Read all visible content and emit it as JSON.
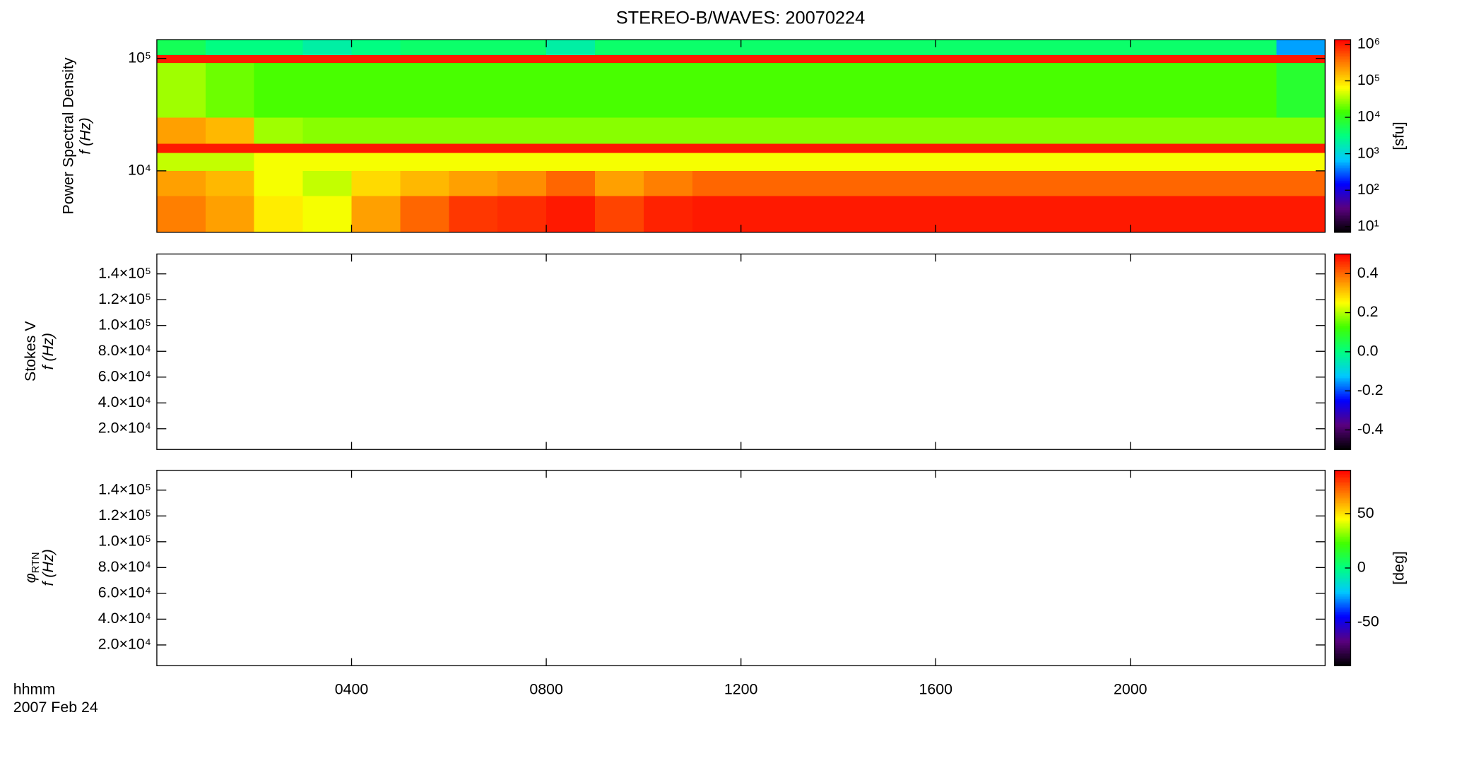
{
  "chart_data": [
    {
      "type": "heatmap",
      "title": "STEREO-B/WAVES: 20070224",
      "ylabel": [
        "Power Spectral Density",
        "f (Hz)"
      ],
      "xlim": [
        0,
        24
      ],
      "ylim": [
        2840,
        147000
      ],
      "log_y": true,
      "yticks": [
        {
          "value": 10000,
          "label": "10⁴"
        },
        {
          "value": 100000,
          "label": "10⁵"
        }
      ],
      "x_bins": [
        0,
        1,
        2,
        3,
        4,
        5,
        6,
        7,
        8,
        9,
        10,
        11,
        12,
        13,
        14,
        15,
        16,
        17,
        18,
        19,
        20,
        21,
        22,
        23,
        24
      ],
      "y_bins": [
        2840,
        6000,
        10000,
        14500,
        17500,
        30000,
        92000,
        108000,
        147000
      ],
      "z": [
        [
          300000,
          200000,
          80000,
          60000,
          200000,
          400000,
          700000,
          800000,
          1000000,
          600000,
          900000,
          1000000,
          1000000,
          1000000,
          1000000,
          1000000,
          1000000,
          1000000,
          1000000,
          1000000,
          1000000,
          1000000,
          1000000,
          1000000
        ],
        [
          200000,
          150000,
          60000,
          40000,
          100000,
          150000,
          200000,
          250000,
          400000,
          200000,
          300000,
          400000,
          400000,
          400000,
          400000,
          400000,
          400000,
          400000,
          400000,
          400000,
          400000,
          400000,
          400000,
          400000
        ],
        [
          40000,
          40000,
          60000,
          60000,
          60000,
          60000,
          60000,
          60000,
          60000,
          60000,
          60000,
          60000,
          60000,
          60000,
          60000,
          60000,
          60000,
          60000,
          60000,
          60000,
          60000,
          60000,
          60000,
          60000
        ],
        [
          1000000,
          1000000,
          1000000,
          1000000,
          1000000,
          1000000,
          1000000,
          1000000,
          1000000,
          1000000,
          1000000,
          1000000,
          1000000,
          1000000,
          1000000,
          1000000,
          1000000,
          1000000,
          1000000,
          1000000,
          1000000,
          1000000,
          1000000,
          1000000
        ],
        [
          200000,
          150000,
          30000,
          25000,
          25000,
          25000,
          25000,
          25000,
          25000,
          25000,
          25000,
          25000,
          25000,
          25000,
          25000,
          25000,
          25000,
          25000,
          25000,
          25000,
          25000,
          25000,
          25000,
          25000
        ],
        [
          30000,
          20000,
          15000,
          15000,
          15000,
          15000,
          15000,
          15000,
          15000,
          15000,
          15000,
          15000,
          15000,
          15000,
          15000,
          15000,
          15000,
          15000,
          15000,
          15000,
          15000,
          15000,
          15000,
          8000
        ],
        [
          1000000,
          1000000,
          1000000,
          1000000,
          1000000,
          1000000,
          1000000,
          1000000,
          1000000,
          1000000,
          1000000,
          1000000,
          1000000,
          1000000,
          1000000,
          1000000,
          1000000,
          1000000,
          1000000,
          1000000,
          1000000,
          1000000,
          1000000,
          1000000
        ],
        [
          5000,
          3000,
          3000,
          2000,
          3000,
          4000,
          4000,
          4000,
          2000,
          4000,
          4000,
          4000,
          4000,
          4000,
          4000,
          4000,
          4000,
          4000,
          4000,
          4000,
          4000,
          4000,
          4000,
          500
        ]
      ],
      "clim": [
        7,
        1350000
      ],
      "log_c": true,
      "cticks": [
        {
          "value": 10,
          "label": "10¹"
        },
        {
          "value": 100,
          "label": "10²"
        },
        {
          "value": 1000,
          "label": "10³"
        },
        {
          "value": 10000,
          "label": "10⁴"
        },
        {
          "value": 100000,
          "label": "10⁵"
        },
        {
          "value": 1000000,
          "label": "10⁶"
        }
      ],
      "clabel": "[sfu]",
      "colorscale": [
        "#000000",
        "#5a007f",
        "#0000ff",
        "#00c8ff",
        "#00ff80",
        "#40ff00",
        "#ffff00",
        "#ff8000",
        "#ff0000"
      ]
    },
    {
      "type": "heatmap",
      "ylabel": [
        "Stokes V",
        "f (Hz)"
      ],
      "xlim": [
        0,
        24
      ],
      "ylim": [
        3900,
        155400
      ],
      "yticks": [
        {
          "value": 20000,
          "label": "2.0×10⁴"
        },
        {
          "value": 40000,
          "label": "4.0×10⁴"
        },
        {
          "value": 60000,
          "label": "6.0×10⁴"
        },
        {
          "value": 80000,
          "label": "8.0×10⁴"
        },
        {
          "value": 100000,
          "label": "1.0×10⁵"
        },
        {
          "value": 120000,
          "label": "1.2×10⁵"
        },
        {
          "value": 140000,
          "label": "1.4×10⁵"
        }
      ],
      "clim": [
        -0.5,
        0.5
      ],
      "cticks": [
        -0.4,
        -0.2,
        {
          "value": 0,
          "label": "0.0"
        },
        0.2,
        0.4
      ],
      "colorscale": [
        "#000000",
        "#5a007f",
        "#0000ff",
        "#00c8ff",
        "#00ff80",
        "#40ff00",
        "#ffff00",
        "#ff8000",
        "#ff0000"
      ]
    },
    {
      "type": "heatmap",
      "ylabel": [
        "φ",
        "f (Hz)"
      ],
      "ylabel_subscript": "RTN",
      "xlim": [
        0,
        24
      ],
      "ylim": [
        3900,
        155400
      ],
      "yticks": [
        {
          "value": 20000,
          "label": "2.0×10⁴"
        },
        {
          "value": 40000,
          "label": "4.0×10⁴"
        },
        {
          "value": 60000,
          "label": "6.0×10⁴"
        },
        {
          "value": 80000,
          "label": "8.0×10⁴"
        },
        {
          "value": 100000,
          "label": "1.0×10⁵"
        },
        {
          "value": 120000,
          "label": "1.2×10⁵"
        },
        {
          "value": 140000,
          "label": "1.4×10⁵"
        }
      ],
      "xticks": [
        {
          "value": 4,
          "label": "0400"
        },
        {
          "value": 8,
          "label": "0800"
        },
        {
          "value": 12,
          "label": "1200"
        },
        {
          "value": 16,
          "label": "1600"
        },
        {
          "value": 20,
          "label": "2000"
        }
      ],
      "xlabel": [
        "hhmm",
        "2007 Feb 24"
      ],
      "clim": [
        -90,
        90
      ],
      "cticks": [
        -50,
        0,
        50
      ],
      "clabel": "[deg]",
      "colorscale": [
        "#000000",
        "#5a007f",
        "#0000ff",
        "#00c8ff",
        "#00ff80",
        "#40ff00",
        "#ffff00",
        "#ff8000",
        "#ff0000"
      ]
    }
  ]
}
